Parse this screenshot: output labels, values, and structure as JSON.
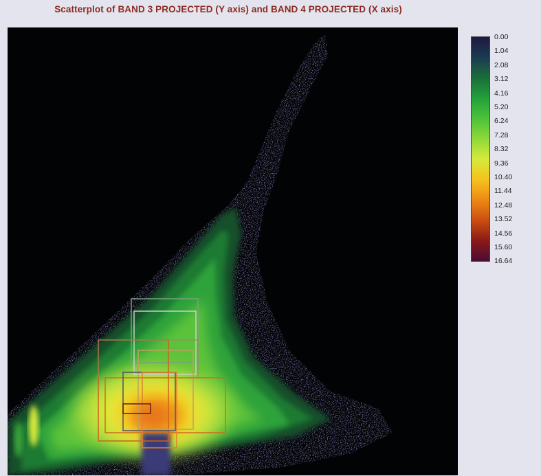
{
  "chart_data": {
    "type": "heatmap",
    "title": "Scatterplot of BAND 3 PROJECTED (Y axis) and BAND 4 PROJECTED (X axis)",
    "xlabel": "",
    "ylabel": "",
    "grid": false,
    "legend_placement": "right",
    "colorbar": {
      "ticks": [
        "0.00",
        "1.04",
        "2.08",
        "3.12",
        "4.16",
        "5.20",
        "6.24",
        "7.28",
        "8.32",
        "9.36",
        "10.40",
        "11.44",
        "12.48",
        "13.52",
        "14.56",
        "15.60",
        "16.64"
      ],
      "range": [
        0,
        16.64
      ],
      "colors": [
        "#20183f",
        "#1a3a52",
        "#1a6e3a",
        "#22a03a",
        "#4cc23a",
        "#8fd83a",
        "#d6ea3a",
        "#f6c21e",
        "#ec8a14",
        "#cc4e10",
        "#8a1a18",
        "#4a0c36"
      ]
    },
    "density_distribution": "triangular wedge, diagonal arm to top, horizontal arm to right, peak near lower center",
    "density_peak": 16.64
  }
}
